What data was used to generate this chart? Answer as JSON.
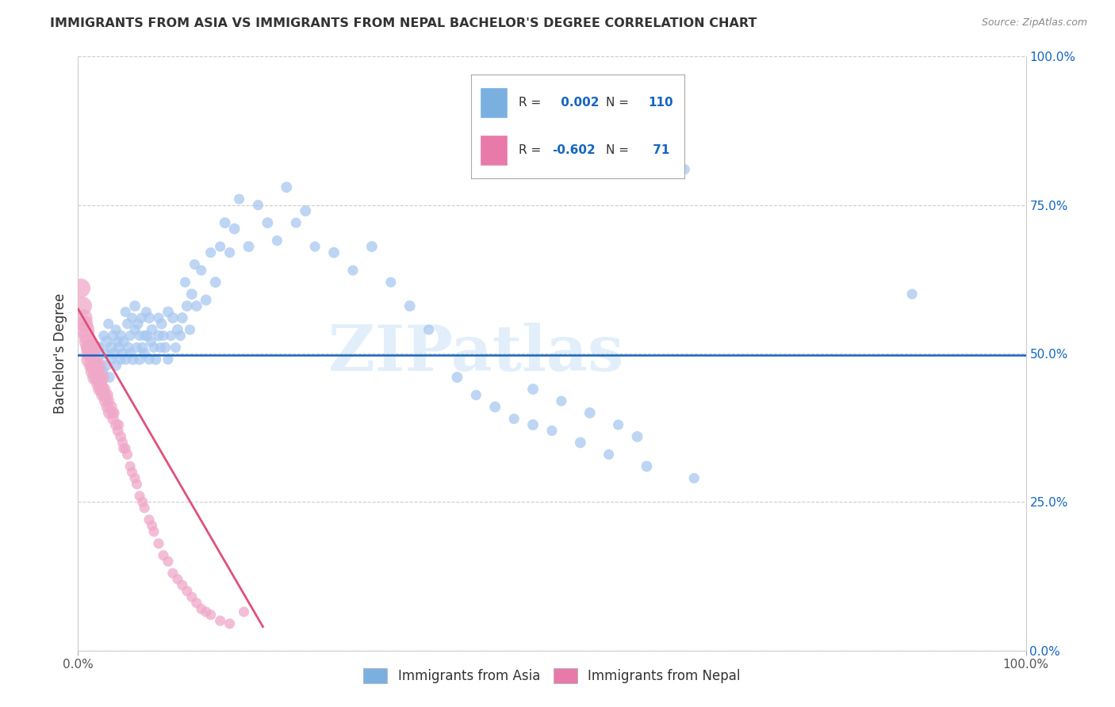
{
  "title": "IMMIGRANTS FROM ASIA VS IMMIGRANTS FROM NEPAL BACHELOR'S DEGREE CORRELATION CHART",
  "source": "Source: ZipAtlas.com",
  "ylabel": "Bachelor's Degree",
  "xlim": [
    0.0,
    1.0
  ],
  "ylim": [
    0.0,
    1.0
  ],
  "ytick_positions": [
    0.0,
    0.25,
    0.5,
    0.75,
    1.0
  ],
  "background_color": "#ffffff",
  "grid_color": "#cccccc",
  "watermark": "ZIPatlas",
  "r_asia": 0.002,
  "n_asia": 110,
  "r_nepal": -0.602,
  "n_nepal": 71,
  "blue_color": "#a8c8f0",
  "pink_color": "#f0a8c8",
  "legend_blue_color": "#7ab0e0",
  "legend_pink_color": "#e87aaa",
  "regression_blue": "#1565c0",
  "regression_pink": "#e0507a",
  "regression_blue_y": 0.497,
  "regression_nepal_x0": 0.0,
  "regression_nepal_y0": 0.575,
  "regression_nepal_x1": 0.195,
  "regression_nepal_y1": 0.04,
  "asia_x": [
    0.02,
    0.022,
    0.025,
    0.027,
    0.028,
    0.03,
    0.03,
    0.032,
    0.033,
    0.035,
    0.035,
    0.037,
    0.038,
    0.04,
    0.04,
    0.042,
    0.043,
    0.045,
    0.045,
    0.047,
    0.048,
    0.05,
    0.05,
    0.052,
    0.053,
    0.055,
    0.055,
    0.057,
    0.058,
    0.06,
    0.06,
    0.062,
    0.063,
    0.065,
    0.065,
    0.067,
    0.068,
    0.07,
    0.07,
    0.072,
    0.073,
    0.075,
    0.075,
    0.077,
    0.078,
    0.08,
    0.082,
    0.085,
    0.085,
    0.087,
    0.088,
    0.09,
    0.092,
    0.095,
    0.095,
    0.098,
    0.1,
    0.103,
    0.105,
    0.108,
    0.11,
    0.113,
    0.115,
    0.118,
    0.12,
    0.123,
    0.125,
    0.13,
    0.135,
    0.14,
    0.145,
    0.15,
    0.155,
    0.16,
    0.165,
    0.17,
    0.18,
    0.19,
    0.2,
    0.21,
    0.22,
    0.23,
    0.24,
    0.25,
    0.27,
    0.29,
    0.31,
    0.33,
    0.35,
    0.37,
    0.4,
    0.42,
    0.44,
    0.46,
    0.48,
    0.5,
    0.53,
    0.56,
    0.6,
    0.65,
    0.55,
    0.58,
    0.61,
    0.64,
    0.48,
    0.51,
    0.54,
    0.57,
    0.59,
    0.88
  ],
  "asia_y": [
    0.49,
    0.51,
    0.47,
    0.53,
    0.5,
    0.48,
    0.52,
    0.55,
    0.46,
    0.51,
    0.49,
    0.53,
    0.5,
    0.54,
    0.48,
    0.52,
    0.51,
    0.49,
    0.53,
    0.5,
    0.52,
    0.57,
    0.49,
    0.55,
    0.51,
    0.53,
    0.5,
    0.56,
    0.49,
    0.54,
    0.58,
    0.51,
    0.55,
    0.53,
    0.49,
    0.56,
    0.51,
    0.53,
    0.5,
    0.57,
    0.53,
    0.49,
    0.56,
    0.52,
    0.54,
    0.51,
    0.49,
    0.56,
    0.53,
    0.51,
    0.55,
    0.53,
    0.51,
    0.49,
    0.57,
    0.53,
    0.56,
    0.51,
    0.54,
    0.53,
    0.56,
    0.62,
    0.58,
    0.54,
    0.6,
    0.65,
    0.58,
    0.64,
    0.59,
    0.67,
    0.62,
    0.68,
    0.72,
    0.67,
    0.71,
    0.76,
    0.68,
    0.75,
    0.72,
    0.69,
    0.78,
    0.72,
    0.74,
    0.68,
    0.67,
    0.64,
    0.68,
    0.62,
    0.58,
    0.54,
    0.46,
    0.43,
    0.41,
    0.39,
    0.38,
    0.37,
    0.35,
    0.33,
    0.31,
    0.29,
    0.9,
    0.87,
    0.84,
    0.81,
    0.44,
    0.42,
    0.4,
    0.38,
    0.36,
    0.6
  ],
  "asia_sizes": [
    120,
    100,
    130,
    90,
    110,
    100,
    120,
    90,
    100,
    110,
    90,
    100,
    110,
    90,
    100,
    90,
    100,
    90,
    100,
    90,
    100,
    90,
    100,
    90,
    100,
    90,
    100,
    90,
    100,
    90,
    100,
    90,
    100,
    90,
    100,
    90,
    100,
    90,
    100,
    90,
    100,
    90,
    100,
    90,
    100,
    90,
    100,
    90,
    100,
    90,
    100,
    90,
    100,
    90,
    100,
    90,
    100,
    90,
    100,
    90,
    100,
    90,
    100,
    90,
    100,
    90,
    100,
    90,
    100,
    90,
    100,
    90,
    100,
    90,
    100,
    90,
    100,
    90,
    100,
    90,
    100,
    90,
    100,
    90,
    100,
    90,
    100,
    90,
    100,
    90,
    100,
    90,
    100,
    90,
    100,
    90,
    100,
    90,
    100,
    90,
    100,
    90,
    100,
    90,
    100,
    90,
    100,
    90,
    100,
    90
  ],
  "nepal_x": [
    0.003,
    0.005,
    0.006,
    0.007,
    0.008,
    0.009,
    0.01,
    0.011,
    0.012,
    0.013,
    0.013,
    0.014,
    0.015,
    0.015,
    0.016,
    0.017,
    0.018,
    0.019,
    0.02,
    0.02,
    0.021,
    0.022,
    0.023,
    0.024,
    0.025,
    0.025,
    0.026,
    0.027,
    0.028,
    0.029,
    0.03,
    0.031,
    0.032,
    0.033,
    0.035,
    0.036,
    0.037,
    0.038,
    0.04,
    0.042,
    0.043,
    0.045,
    0.047,
    0.048,
    0.05,
    0.052,
    0.055,
    0.057,
    0.06,
    0.062,
    0.065,
    0.068,
    0.07,
    0.075,
    0.078,
    0.08,
    0.085,
    0.09,
    0.095,
    0.1,
    0.105,
    0.11,
    0.115,
    0.12,
    0.125,
    0.13,
    0.135,
    0.14,
    0.15,
    0.16,
    0.175
  ],
  "nepal_y": [
    0.61,
    0.58,
    0.56,
    0.55,
    0.54,
    0.53,
    0.52,
    0.51,
    0.5,
    0.51,
    0.49,
    0.5,
    0.48,
    0.51,
    0.47,
    0.48,
    0.46,
    0.47,
    0.48,
    0.46,
    0.45,
    0.46,
    0.44,
    0.45,
    0.44,
    0.46,
    0.43,
    0.44,
    0.43,
    0.42,
    0.43,
    0.41,
    0.42,
    0.4,
    0.41,
    0.4,
    0.39,
    0.4,
    0.38,
    0.37,
    0.38,
    0.36,
    0.35,
    0.34,
    0.34,
    0.33,
    0.31,
    0.3,
    0.29,
    0.28,
    0.26,
    0.25,
    0.24,
    0.22,
    0.21,
    0.2,
    0.18,
    0.16,
    0.15,
    0.13,
    0.12,
    0.11,
    0.1,
    0.09,
    0.08,
    0.07,
    0.065,
    0.06,
    0.05,
    0.045,
    0.065
  ],
  "nepal_sizes": [
    300,
    280,
    250,
    230,
    260,
    220,
    240,
    200,
    220,
    260,
    280,
    240,
    220,
    260,
    200,
    220,
    200,
    180,
    240,
    200,
    160,
    180,
    160,
    140,
    160,
    180,
    140,
    150,
    130,
    140,
    150,
    130,
    120,
    130,
    120,
    110,
    110,
    100,
    110,
    100,
    90,
    100,
    90,
    90,
    90,
    90,
    90,
    90,
    90,
    90,
    90,
    90,
    90,
    90,
    90,
    90,
    90,
    90,
    90,
    90,
    90,
    90,
    90,
    90,
    90,
    90,
    90,
    90,
    90,
    90,
    90
  ]
}
